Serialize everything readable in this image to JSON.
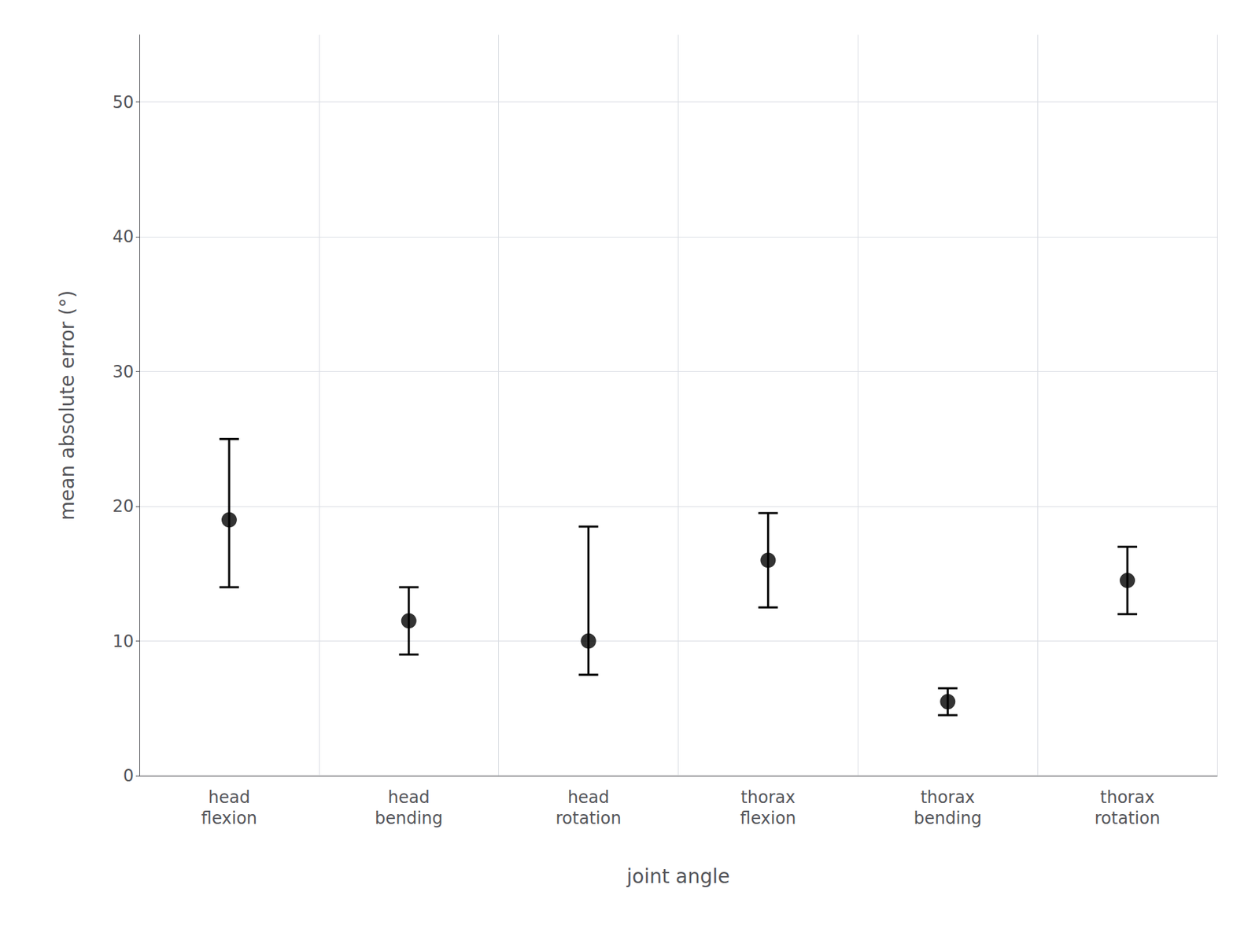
{
  "chart_data": {
    "type": "errorbar",
    "xlabel": "joint angle",
    "ylabel": "mean absolute error (°)",
    "categories": [
      "head\nflexion",
      "head\nbending",
      "head\nrotation",
      "thorax\nflexion",
      "thorax\nbending",
      "thorax\nrotation"
    ],
    "values": [
      19.0,
      11.5,
      10.0,
      16.0,
      5.5,
      14.5
    ],
    "ci_lower": [
      14.0,
      9.0,
      7.5,
      12.5,
      4.5,
      12.0
    ],
    "ci_upper": [
      25.0,
      14.0,
      18.5,
      19.5,
      6.5,
      17.0
    ],
    "color": "#000000",
    "marker": "circle",
    "ylim": [
      0,
      55
    ],
    "yticks": [
      0,
      10,
      20,
      30,
      40,
      50
    ],
    "grid": true
  }
}
